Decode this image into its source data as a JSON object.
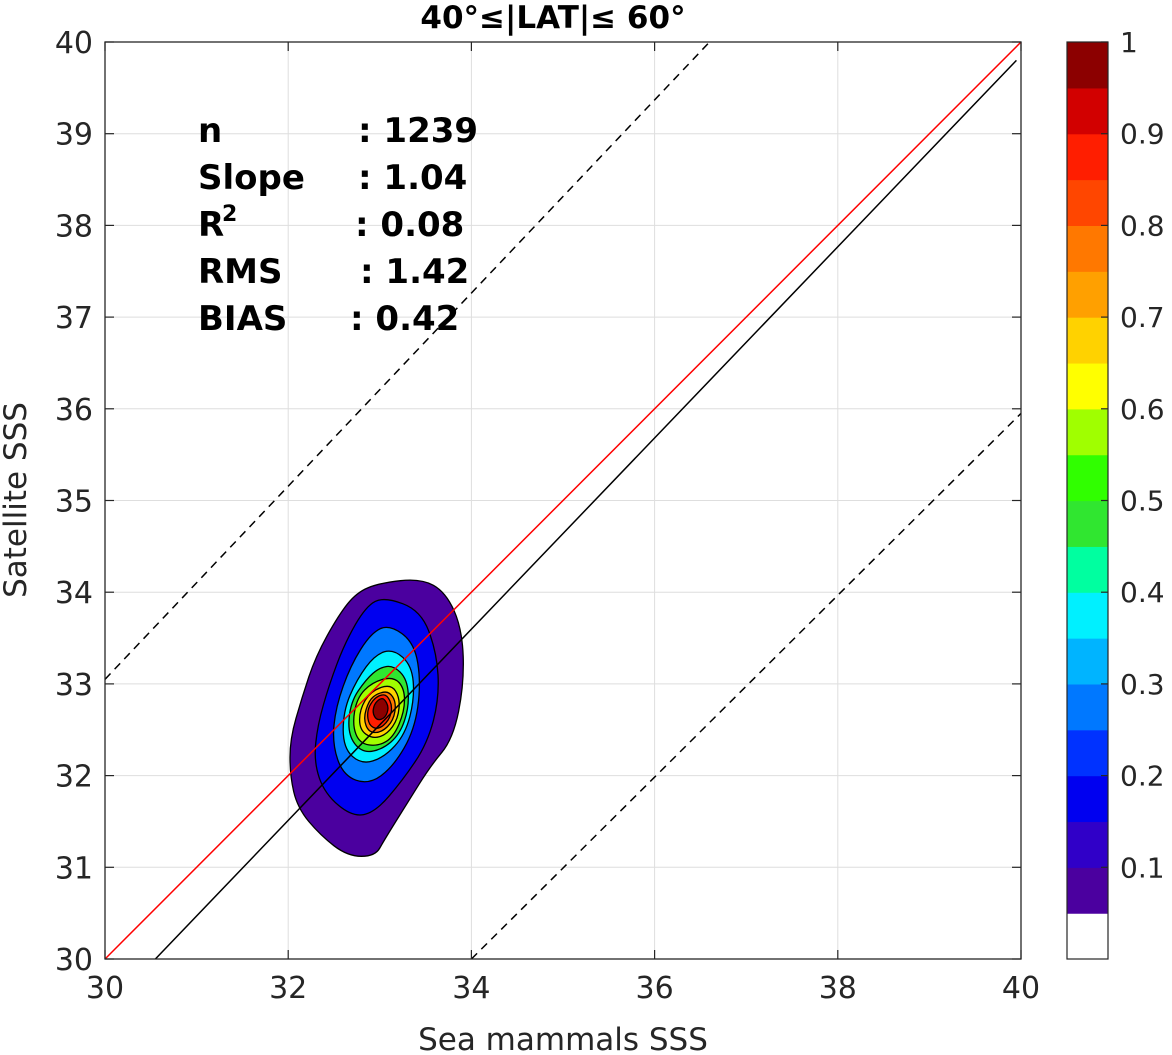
{
  "chart_data": {
    "type": "contour-density-scatter",
    "title": "40°≤|LAT|≤ 60°",
    "xlabel": "Sea mammals SSS",
    "ylabel": "Satellite SSS",
    "xlim": [
      30,
      40
    ],
    "ylim": [
      30,
      40
    ],
    "xticks": [
      "30",
      "32",
      "34",
      "36",
      "38",
      "40"
    ],
    "yticks": [
      "30",
      "31",
      "32",
      "33",
      "34",
      "35",
      "36",
      "37",
      "38",
      "39",
      "40"
    ],
    "grid": true,
    "stats": [
      {
        "label": "n",
        "value": ": 1239"
      },
      {
        "label": "Slope",
        "value": ": 1.04"
      },
      {
        "label": "R",
        "sup": "2",
        "value": ": 0.08"
      },
      {
        "label": "RMS",
        "value": ": 1.42"
      },
      {
        "label": "BIAS",
        "value": ": 0.42"
      }
    ],
    "lines": [
      {
        "role": "identity",
        "color": "#ff0000",
        "style": "solid",
        "from": [
          30,
          30
        ],
        "to": [
          40,
          40
        ]
      },
      {
        "role": "regression",
        "color": "#000000",
        "style": "solid",
        "from": [
          30.55,
          30
        ],
        "to": [
          39.95,
          39.8
        ]
      },
      {
        "role": "upper-bound",
        "color": "#000000",
        "style": "dashed",
        "from": [
          30,
          33.05
        ],
        "to": [
          36.6,
          40
        ]
      },
      {
        "role": "lower-bound",
        "color": "#000000",
        "style": "dashed",
        "from": [
          34.0,
          30
        ],
        "to": [
          40,
          35.95
        ]
      }
    ],
    "density": {
      "center": [
        33.02,
        32.72
      ],
      "levels": [
        0.05,
        0.15,
        0.25,
        0.35,
        0.45,
        0.55,
        0.65,
        0.75,
        0.85,
        0.95
      ],
      "contours": [
        {
          "level": 0.05,
          "points": [
            [
              33.0,
              34.1
            ],
            [
              33.45,
              34.15
            ],
            [
              33.72,
              34.0
            ],
            [
              33.9,
              33.6
            ],
            [
              33.92,
              33.0
            ],
            [
              33.8,
              32.4
            ],
            [
              33.55,
              32.1
            ],
            [
              33.3,
              31.7
            ],
            [
              33.05,
              31.3
            ],
            [
              32.95,
              31.12
            ],
            [
              32.65,
              31.12
            ],
            [
              32.35,
              31.35
            ],
            [
              32.1,
              31.65
            ],
            [
              32.02,
              32.0
            ],
            [
              32.02,
              32.4
            ],
            [
              32.15,
              32.85
            ],
            [
              32.3,
              33.3
            ],
            [
              32.55,
              33.75
            ],
            [
              32.75,
              34.0
            ]
          ]
        },
        {
          "level": 0.15,
          "points": [
            [
              33.05,
              33.95
            ],
            [
              33.45,
              33.8
            ],
            [
              33.62,
              33.35
            ],
            [
              33.65,
              32.85
            ],
            [
              33.52,
              32.35
            ],
            [
              33.25,
              31.95
            ],
            [
              32.95,
              31.6
            ],
            [
              32.7,
              31.55
            ],
            [
              32.4,
              31.8
            ],
            [
              32.28,
              32.15
            ],
            [
              32.32,
              32.55
            ],
            [
              32.45,
              33.0
            ],
            [
              32.62,
              33.45
            ],
            [
              32.85,
              33.85
            ]
          ]
        },
        {
          "level": 0.25,
          "points": [
            [
              33.1,
              33.65
            ],
            [
              33.38,
              33.45
            ],
            [
              33.45,
              33.0
            ],
            [
              33.38,
              32.5
            ],
            [
              33.15,
              32.1
            ],
            [
              32.88,
              31.9
            ],
            [
              32.6,
              32.0
            ],
            [
              32.48,
              32.35
            ],
            [
              32.52,
              32.75
            ],
            [
              32.68,
              33.2
            ],
            [
              32.9,
              33.55
            ]
          ]
        },
        {
          "level": 0.35,
          "points": [
            [
              33.15,
              33.38
            ],
            [
              33.35,
              33.2
            ],
            [
              33.38,
              32.85
            ],
            [
              33.28,
              32.45
            ],
            [
              33.05,
              32.2
            ],
            [
              32.8,
              32.12
            ],
            [
              32.6,
              32.3
            ],
            [
              32.6,
              32.7
            ],
            [
              32.75,
              33.05
            ],
            [
              32.95,
              33.32
            ]
          ]
        },
        {
          "level": 0.45,
          "points": [
            [
              33.15,
              33.2
            ],
            [
              33.3,
              33.05
            ],
            [
              33.32,
              32.75
            ],
            [
              33.22,
              32.45
            ],
            [
              33.02,
              32.28
            ],
            [
              32.8,
              32.25
            ],
            [
              32.65,
              32.45
            ],
            [
              32.68,
              32.8
            ],
            [
              32.85,
              33.05
            ],
            [
              33.0,
              33.18
            ]
          ]
        },
        {
          "level": 0.55,
          "points": [
            [
              33.15,
              33.08
            ],
            [
              33.27,
              32.95
            ],
            [
              33.27,
              32.7
            ],
            [
              33.15,
              32.42
            ],
            [
              32.98,
              32.32
            ],
            [
              32.78,
              32.35
            ],
            [
              32.7,
              32.55
            ],
            [
              32.75,
              32.85
            ],
            [
              32.92,
              33.02
            ]
          ]
        },
        {
          "level": 0.65,
          "points": [
            [
              33.12,
              33.0
            ],
            [
              33.22,
              32.85
            ],
            [
              33.2,
              32.62
            ],
            [
              33.08,
              32.45
            ],
            [
              32.92,
              32.4
            ],
            [
              32.78,
              32.5
            ],
            [
              32.78,
              32.72
            ],
            [
              32.9,
              32.92
            ]
          ]
        },
        {
          "level": 0.75,
          "points": [
            [
              33.1,
              32.92
            ],
            [
              33.18,
              32.8
            ],
            [
              33.15,
              32.6
            ],
            [
              33.02,
              32.47
            ],
            [
              32.88,
              32.47
            ],
            [
              32.82,
              32.62
            ],
            [
              32.88,
              32.82
            ],
            [
              32.98,
              32.9
            ]
          ]
        },
        {
          "level": 0.85,
          "points": [
            [
              33.08,
              32.88
            ],
            [
              33.14,
              32.75
            ],
            [
              33.1,
              32.6
            ],
            [
              32.98,
              32.5
            ],
            [
              32.88,
              32.55
            ],
            [
              32.86,
              32.7
            ],
            [
              32.92,
              32.82
            ],
            [
              33.0,
              32.88
            ]
          ]
        },
        {
          "level": 0.95,
          "points": [
            [
              33.05,
              32.84
            ],
            [
              33.1,
              32.74
            ],
            [
              33.06,
              32.63
            ],
            [
              32.97,
              32.6
            ],
            [
              32.92,
              32.68
            ],
            [
              32.94,
              32.78
            ],
            [
              33.0,
              32.84
            ]
          ]
        }
      ]
    },
    "colorbar": {
      "range": [
        0,
        1
      ],
      "ticks": [
        "0.1",
        "0.2",
        "0.3",
        "0.4",
        "0.5",
        "0.6",
        "0.7",
        "0.8",
        "0.9",
        "1"
      ],
      "colors": [
        "#ffffff",
        "#4b009f",
        "#3000c8",
        "#0000f0",
        "#0032ff",
        "#0078ff",
        "#00b4ff",
        "#00f0ff",
        "#00ffa0",
        "#30e630",
        "#30ff00",
        "#a0ff00",
        "#ffff00",
        "#ffd200",
        "#ffa000",
        "#ff7800",
        "#ff4600",
        "#ff1e00",
        "#d20000",
        "#8c0000"
      ]
    }
  }
}
